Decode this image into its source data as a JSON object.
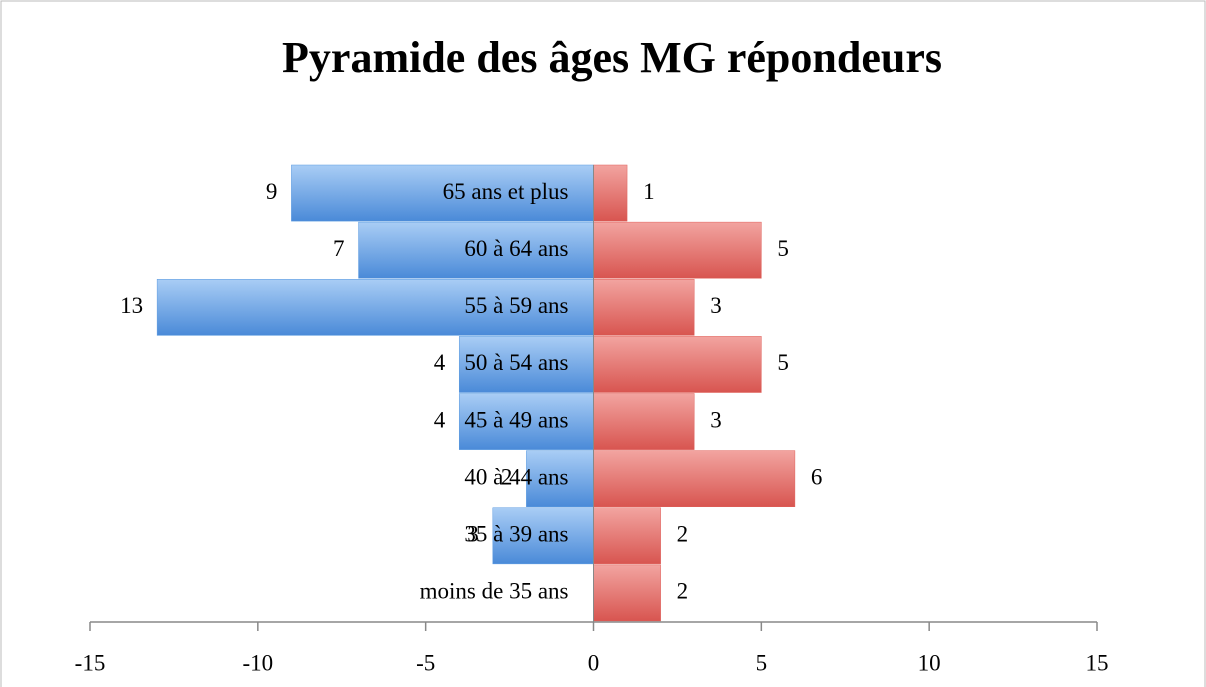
{
  "chart_data": {
    "type": "pyramid",
    "title": "Pyramide des âges MG répondeurs",
    "categories": [
      "moins de 35 ans",
      "35 à 39 ans",
      "40 à 44 ans",
      "45 à 49 ans",
      "50 à 54 ans",
      "55 à 59 ans",
      "60 à 64 ans",
      "65 ans et plus"
    ],
    "series": [
      {
        "color": "#5a9ae0",
        "values": [
          null,
          -3,
          -2,
          -4,
          -4,
          -13,
          -7,
          -9
        ],
        "value_labels": [
          null,
          "3",
          "2",
          "4",
          "4",
          "13",
          "7",
          "9"
        ]
      },
      {
        "color": "#e0605a",
        "values": [
          2,
          2,
          6,
          3,
          5,
          3,
          5,
          1
        ]
      }
    ],
    "xlim": [
      -15,
      15
    ],
    "xticks": [
      -15,
      -10,
      -5,
      0,
      5,
      10,
      15
    ]
  }
}
